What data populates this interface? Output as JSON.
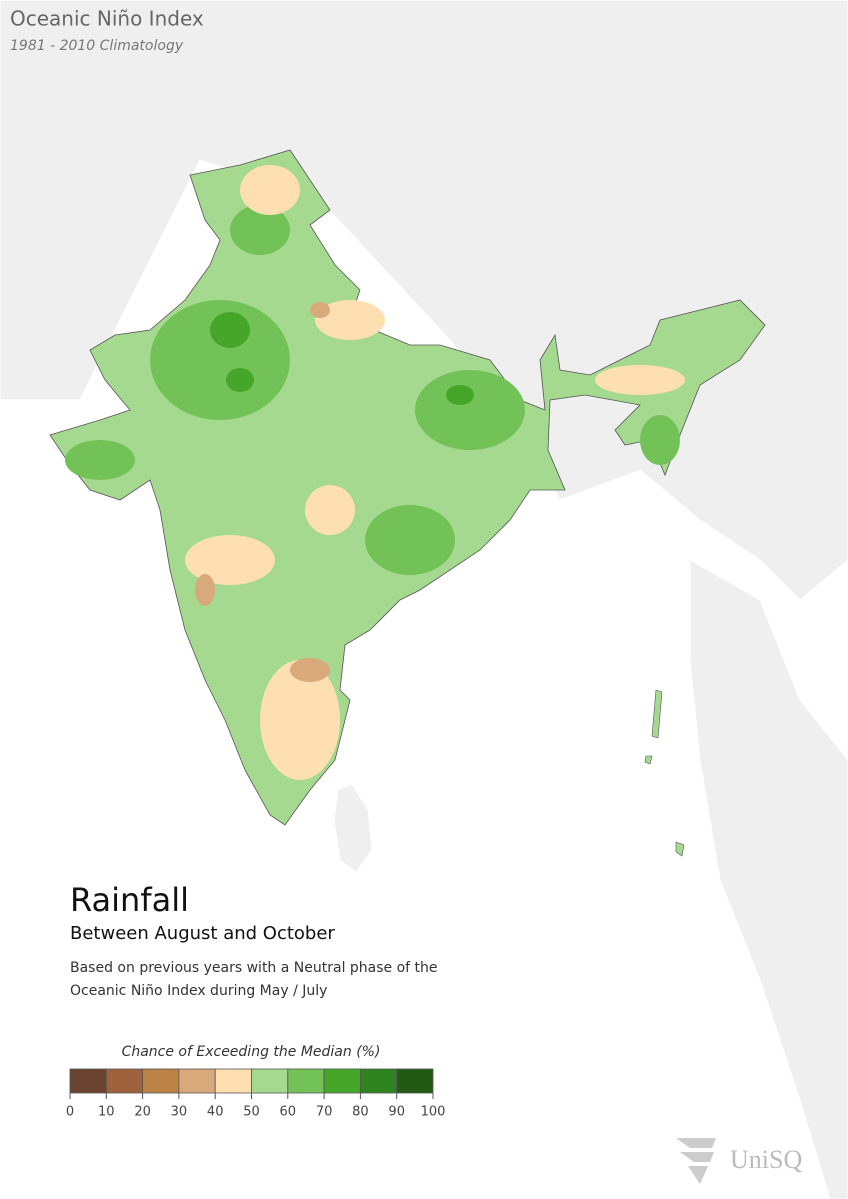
{
  "header": {
    "title": "Oceanic Niño Index",
    "subtitle": "1981 - 2010 Climatology"
  },
  "panel": {
    "title": "Rainfall",
    "subtitle": "Between August and October",
    "description": [
      "Based on previous years with a Neutral phase of the",
      "Oceanic Niño Index during May / July"
    ]
  },
  "legend": {
    "title": "Chance of Exceeding the Median (%)",
    "ticks": [
      0,
      10,
      20,
      30,
      40,
      50,
      60,
      70,
      80,
      90,
      100
    ],
    "colors": [
      "#6b4331",
      "#a0623c",
      "#bd8246",
      "#d8a97a",
      "#fedfb2",
      "#a5d98f",
      "#72c258",
      "#45a62a",
      "#2f841f",
      "#225a14"
    ]
  },
  "logo": {
    "text": "UniSQ"
  }
}
